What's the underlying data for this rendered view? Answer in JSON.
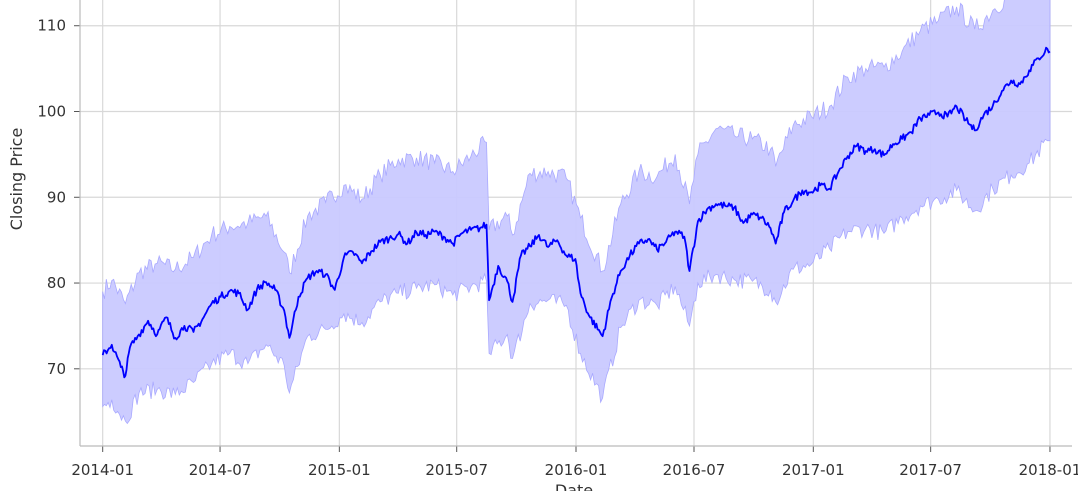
{
  "chart_data": {
    "type": "line",
    "xlabel": "Date",
    "ylabel": "Closing Price",
    "x_ticks": [
      "2014-01",
      "2014-07",
      "2015-01",
      "2015-07",
      "2016-01",
      "2016-07",
      "2017-01",
      "2017-07",
      "2018-01"
    ],
    "y_ticks": [
      70,
      80,
      90,
      100,
      110
    ],
    "xlim": [
      "2013-11-27",
      "2018-02-04"
    ],
    "ylim": [
      61,
      113
    ],
    "grid": true,
    "colors": {
      "line": "#0000ff",
      "band_fill": "#c9c9ff",
      "band_edge": "#a9a9ff",
      "grid": "#d8d8d8"
    },
    "series": [
      {
        "values": [
          [
            "2014-01-01",
            71.6
          ],
          [
            "2014-01-15",
            72.8
          ],
          [
            "2014-01-29",
            70.2
          ],
          [
            "2014-02-05",
            69.2
          ],
          [
            "2014-02-12",
            72.5
          ],
          [
            "2014-02-26",
            74.0
          ],
          [
            "2014-03-12",
            75.6
          ],
          [
            "2014-03-26",
            74.0
          ],
          [
            "2014-04-09",
            76.0
          ],
          [
            "2014-04-23",
            73.6
          ],
          [
            "2014-05-07",
            75.0
          ],
          [
            "2014-05-21",
            74.3
          ],
          [
            "2014-06-04",
            75.8
          ],
          [
            "2014-06-18",
            77.6
          ],
          [
            "2014-07-02",
            78.4
          ],
          [
            "2014-07-16",
            79.1
          ],
          [
            "2014-07-30",
            78.8
          ],
          [
            "2014-08-13",
            76.9
          ],
          [
            "2014-08-27",
            79.3
          ],
          [
            "2014-09-10",
            80.1
          ],
          [
            "2014-09-24",
            79.2
          ],
          [
            "2014-10-08",
            76.8
          ],
          [
            "2014-10-16",
            73.6
          ],
          [
            "2014-10-30",
            78.4
          ],
          [
            "2014-11-13",
            80.6
          ],
          [
            "2014-11-27",
            81.4
          ],
          [
            "2014-12-11",
            81.0
          ],
          [
            "2014-12-25",
            79.2
          ],
          [
            "2015-01-08",
            83.0
          ],
          [
            "2015-01-22",
            83.6
          ],
          [
            "2015-02-05",
            82.3
          ],
          [
            "2015-02-19",
            83.7
          ],
          [
            "2015-03-05",
            84.8
          ],
          [
            "2015-03-19",
            85.2
          ],
          [
            "2015-04-02",
            85.7
          ],
          [
            "2015-04-16",
            84.6
          ],
          [
            "2015-04-30",
            85.9
          ],
          [
            "2015-05-14",
            85.6
          ],
          [
            "2015-05-28",
            86.0
          ],
          [
            "2015-06-11",
            85.4
          ],
          [
            "2015-06-25",
            84.6
          ],
          [
            "2015-07-09",
            85.8
          ],
          [
            "2015-07-23",
            86.2
          ],
          [
            "2015-08-06",
            86.4
          ],
          [
            "2015-08-16",
            86.8
          ],
          [
            "2015-08-20",
            78.0
          ],
          [
            "2015-09-03",
            82.0
          ],
          [
            "2015-09-17",
            80.2
          ],
          [
            "2015-09-25",
            77.8
          ],
          [
            "2015-10-08",
            83.2
          ],
          [
            "2015-10-22",
            84.3
          ],
          [
            "2015-11-05",
            85.6
          ],
          [
            "2015-11-19",
            84.2
          ],
          [
            "2015-12-03",
            85.0
          ],
          [
            "2015-12-17",
            83.2
          ],
          [
            "2015-12-31",
            82.8
          ],
          [
            "2016-01-08",
            78.8
          ],
          [
            "2016-01-21",
            76.2
          ],
          [
            "2016-02-11",
            73.8
          ],
          [
            "2016-02-25",
            78.3
          ],
          [
            "2016-03-10",
            81.4
          ],
          [
            "2016-03-24",
            83.2
          ],
          [
            "2016-04-07",
            84.6
          ],
          [
            "2016-04-21",
            85.1
          ],
          [
            "2016-05-05",
            83.9
          ],
          [
            "2016-05-19",
            84.8
          ],
          [
            "2016-06-02",
            86.0
          ],
          [
            "2016-06-16",
            85.4
          ],
          [
            "2016-06-24",
            81.4
          ],
          [
            "2016-07-07",
            87.2
          ],
          [
            "2016-07-21",
            88.6
          ],
          [
            "2016-08-04",
            89.2
          ],
          [
            "2016-08-18",
            89.0
          ],
          [
            "2016-09-01",
            88.8
          ],
          [
            "2016-09-15",
            87.0
          ],
          [
            "2016-09-29",
            88.0
          ],
          [
            "2016-10-13",
            87.6
          ],
          [
            "2016-10-27",
            86.4
          ],
          [
            "2016-11-04",
            84.6
          ],
          [
            "2016-11-17",
            88.3
          ],
          [
            "2016-12-01",
            89.6
          ],
          [
            "2016-12-15",
            90.8
          ],
          [
            "2016-12-29",
            90.6
          ],
          [
            "2017-01-12",
            91.4
          ],
          [
            "2017-01-26",
            91.0
          ],
          [
            "2017-02-09",
            93.0
          ],
          [
            "2017-02-23",
            94.8
          ],
          [
            "2017-03-09",
            96.0
          ],
          [
            "2017-03-23",
            95.4
          ],
          [
            "2017-04-06",
            95.6
          ],
          [
            "2017-04-20",
            94.9
          ],
          [
            "2017-05-04",
            96.2
          ],
          [
            "2017-05-18",
            96.8
          ],
          [
            "2017-06-01",
            97.6
          ],
          [
            "2017-06-15",
            99.2
          ],
          [
            "2017-06-29",
            99.6
          ],
          [
            "2017-07-13",
            99.9
          ],
          [
            "2017-07-27",
            99.4
          ],
          [
            "2017-08-10",
            100.6
          ],
          [
            "2017-08-24",
            99.0
          ],
          [
            "2017-09-07",
            97.8
          ],
          [
            "2017-09-21",
            99.6
          ],
          [
            "2017-10-05",
            100.7
          ],
          [
            "2017-10-19",
            102.4
          ],
          [
            "2017-11-02",
            103.6
          ],
          [
            "2017-11-16",
            103.2
          ],
          [
            "2017-11-30",
            104.8
          ],
          [
            "2017-12-14",
            106.2
          ],
          [
            "2017-12-28",
            107.3
          ],
          [
            "2018-01-01",
            107.0
          ]
        ]
      }
    ],
    "band": {
      "upper": [
        [
          "2014-01-01",
          79.0
        ],
        [
          "2014-01-15",
          80.3
        ],
        [
          "2014-02-05",
          77.6
        ],
        [
          "2014-02-26",
          81.2
        ],
        [
          "2014-03-26",
          82.3
        ],
        [
          "2014-04-23",
          81.6
        ],
        [
          "2014-05-21",
          83.0
        ],
        [
          "2014-06-18",
          85.6
        ],
        [
          "2014-07-16",
          86.6
        ],
        [
          "2014-08-13",
          87.0
        ],
        [
          "2014-09-10",
          87.8
        ],
        [
          "2014-10-08",
          83.6
        ],
        [
          "2014-10-16",
          81.2
        ],
        [
          "2014-11-13",
          87.8
        ],
        [
          "2014-12-11",
          89.4
        ],
        [
          "2015-01-08",
          91.4
        ],
        [
          "2015-02-05",
          89.8
        ],
        [
          "2015-03-05",
          92.6
        ],
        [
          "2015-04-02",
          94.4
        ],
        [
          "2015-04-30",
          94.6
        ],
        [
          "2015-05-28",
          94.0
        ],
        [
          "2015-06-25",
          93.0
        ],
        [
          "2015-07-23",
          94.8
        ],
        [
          "2015-08-16",
          96.4
        ],
        [
          "2015-08-20",
          86.2
        ],
        [
          "2015-09-17",
          87.8
        ],
        [
          "2015-09-25",
          85.6
        ],
        [
          "2015-10-22",
          92.8
        ],
        [
          "2015-11-19",
          93.0
        ],
        [
          "2015-12-17",
          92.2
        ],
        [
          "2016-01-08",
          87.6
        ],
        [
          "2016-02-11",
          81.4
        ],
        [
          "2016-03-10",
          89.2
        ],
        [
          "2016-04-07",
          93.0
        ],
        [
          "2016-05-05",
          92.4
        ],
        [
          "2016-06-02",
          95.0
        ],
        [
          "2016-06-24",
          89.2
        ],
        [
          "2016-07-07",
          95.0
        ],
        [
          "2016-08-04",
          98.0
        ],
        [
          "2016-09-01",
          97.2
        ],
        [
          "2016-09-29",
          96.8
        ],
        [
          "2016-10-27",
          95.6
        ],
        [
          "2016-11-04",
          93.6
        ],
        [
          "2016-12-01",
          98.4
        ],
        [
          "2016-12-29",
          99.4
        ],
        [
          "2017-01-26",
          100.6
        ],
        [
          "2017-02-23",
          104.0
        ],
        [
          "2017-03-23",
          105.0
        ],
        [
          "2017-04-20",
          105.2
        ],
        [
          "2017-05-18",
          107.0
        ],
        [
          "2017-06-15",
          109.4
        ],
        [
          "2017-07-13",
          110.6
        ],
        [
          "2017-08-10",
          112.2
        ],
        [
          "2017-09-07",
          109.6
        ],
        [
          "2017-10-05",
          111.8
        ],
        [
          "2017-11-02",
          113.8
        ],
        [
          "2017-11-30",
          115.0
        ],
        [
          "2017-12-28",
          118.0
        ],
        [
          "2018-01-01",
          118.0
        ]
      ],
      "lower": [
        [
          "2014-01-01",
          65.6
        ],
        [
          "2014-01-15",
          66.4
        ],
        [
          "2014-02-05",
          63.9
        ],
        [
          "2014-02-26",
          67.2
        ],
        [
          "2014-03-26",
          67.6
        ],
        [
          "2014-04-23",
          67.0
        ],
        [
          "2014-05-21",
          68.4
        ],
        [
          "2014-06-18",
          70.6
        ],
        [
          "2014-07-16",
          71.8
        ],
        [
          "2014-08-13",
          70.6
        ],
        [
          "2014-09-10",
          72.8
        ],
        [
          "2014-10-08",
          70.4
        ],
        [
          "2014-10-16",
          67.2
        ],
        [
          "2014-11-13",
          73.8
        ],
        [
          "2014-12-11",
          74.6
        ],
        [
          "2015-01-08",
          76.4
        ],
        [
          "2015-02-05",
          75.4
        ],
        [
          "2015-03-05",
          77.8
        ],
        [
          "2015-04-02",
          78.8
        ],
        [
          "2015-04-30",
          79.4
        ],
        [
          "2015-05-28",
          79.8
        ],
        [
          "2015-06-25",
          78.6
        ],
        [
          "2015-07-23",
          79.6
        ],
        [
          "2015-08-16",
          80.2
        ],
        [
          "2015-08-20",
          71.8
        ],
        [
          "2015-09-17",
          74.0
        ],
        [
          "2015-09-25",
          71.2
        ],
        [
          "2015-10-22",
          77.6
        ],
        [
          "2015-11-19",
          78.0
        ],
        [
          "2015-12-17",
          77.4
        ],
        [
          "2016-01-08",
          71.8
        ],
        [
          "2016-02-11",
          66.6
        ],
        [
          "2016-03-10",
          74.8
        ],
        [
          "2016-04-07",
          78.0
        ],
        [
          "2016-05-05",
          77.4
        ],
        [
          "2016-06-02",
          79.6
        ],
        [
          "2016-06-24",
          75.0
        ],
        [
          "2016-07-07",
          80.0
        ],
        [
          "2016-08-04",
          81.0
        ],
        [
          "2016-09-01",
          80.4
        ],
        [
          "2016-09-29",
          80.2
        ],
        [
          "2016-10-27",
          79.2
        ],
        [
          "2016-11-04",
          77.8
        ],
        [
          "2016-12-01",
          81.6
        ],
        [
          "2016-12-29",
          82.2
        ],
        [
          "2017-01-26",
          84.0
        ],
        [
          "2017-02-23",
          86.0
        ],
        [
          "2017-03-23",
          86.4
        ],
        [
          "2017-04-20",
          85.8
        ],
        [
          "2017-05-18",
          87.6
        ],
        [
          "2017-06-15",
          89.0
        ],
        [
          "2017-07-13",
          89.8
        ],
        [
          "2017-08-10",
          90.8
        ],
        [
          "2017-09-07",
          88.4
        ],
        [
          "2017-10-05",
          91.0
        ],
        [
          "2017-11-02",
          92.6
        ],
        [
          "2017-11-30",
          94.0
        ],
        [
          "2017-12-28",
          96.6
        ],
        [
          "2018-01-01",
          96.6
        ]
      ]
    }
  }
}
